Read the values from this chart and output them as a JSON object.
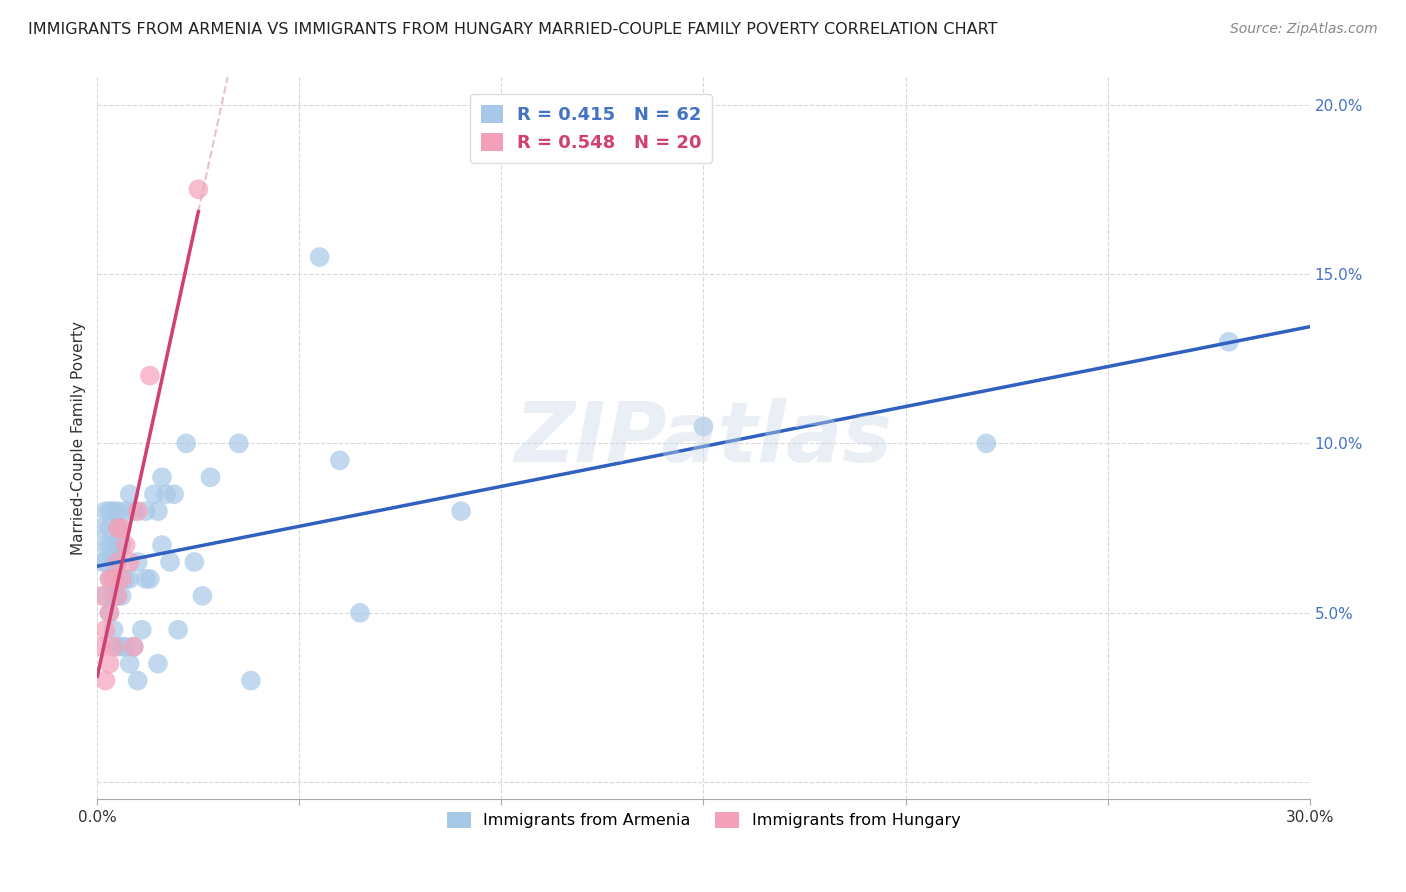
{
  "title": "IMMIGRANTS FROM ARMENIA VS IMMIGRANTS FROM HUNGARY MARRIED-COUPLE FAMILY POVERTY CORRELATION CHART",
  "source": "Source: ZipAtlas.com",
  "ylabel": "Married-Couple Family Poverty",
  "xlim": [
    0,
    0.3
  ],
  "ylim": [
    -0.005,
    0.208
  ],
  "xticks": [
    0.0,
    0.3
  ],
  "xtick_labels_show": [
    "0.0%",
    "30.0%"
  ],
  "yticks": [
    0.0,
    0.05,
    0.1,
    0.15,
    0.2
  ],
  "ytick_labels": [
    "",
    "5.0%",
    "10.0%",
    "15.0%",
    "20.0%"
  ],
  "armenia_x": [
    0.001,
    0.001,
    0.002,
    0.002,
    0.002,
    0.002,
    0.003,
    0.003,
    0.003,
    0.003,
    0.003,
    0.004,
    0.004,
    0.004,
    0.004,
    0.004,
    0.005,
    0.005,
    0.005,
    0.005,
    0.005,
    0.005,
    0.006,
    0.006,
    0.006,
    0.006,
    0.007,
    0.007,
    0.007,
    0.008,
    0.008,
    0.008,
    0.009,
    0.009,
    0.01,
    0.01,
    0.011,
    0.012,
    0.012,
    0.013,
    0.014,
    0.015,
    0.015,
    0.016,
    0.016,
    0.017,
    0.018,
    0.019,
    0.02,
    0.022,
    0.024,
    0.026,
    0.028,
    0.035,
    0.038,
    0.055,
    0.06,
    0.065,
    0.09,
    0.15,
    0.22,
    0.28
  ],
  "armenia_y": [
    0.065,
    0.075,
    0.055,
    0.065,
    0.07,
    0.08,
    0.05,
    0.06,
    0.07,
    0.075,
    0.08,
    0.045,
    0.055,
    0.065,
    0.07,
    0.08,
    0.04,
    0.055,
    0.065,
    0.07,
    0.075,
    0.08,
    0.04,
    0.055,
    0.07,
    0.075,
    0.04,
    0.06,
    0.08,
    0.035,
    0.06,
    0.085,
    0.04,
    0.08,
    0.03,
    0.065,
    0.045,
    0.06,
    0.08,
    0.06,
    0.085,
    0.035,
    0.08,
    0.07,
    0.09,
    0.085,
    0.065,
    0.085,
    0.045,
    0.1,
    0.065,
    0.055,
    0.09,
    0.1,
    0.03,
    0.155,
    0.095,
    0.05,
    0.08,
    0.105,
    0.1,
    0.13
  ],
  "hungary_x": [
    0.001,
    0.001,
    0.002,
    0.002,
    0.003,
    0.003,
    0.003,
    0.004,
    0.004,
    0.005,
    0.005,
    0.005,
    0.006,
    0.006,
    0.007,
    0.008,
    0.009,
    0.01,
    0.013,
    0.025
  ],
  "hungary_y": [
    0.04,
    0.055,
    0.03,
    0.045,
    0.035,
    0.05,
    0.06,
    0.04,
    0.06,
    0.055,
    0.065,
    0.075,
    0.06,
    0.075,
    0.07,
    0.065,
    0.04,
    0.08,
    0.12,
    0.175
  ],
  "armenia_color": "#a8c8e8",
  "hungary_color": "#f4a0b8",
  "armenia_line_color": "#3060c0",
  "hungary_line_color": "#d04070",
  "ref_line_color": "#e8c0d0",
  "watermark": "ZIPatlas",
  "watermark_color": "#c8d8e8",
  "r_armenia": 0.415,
  "r_hungary": 0.548,
  "n_armenia": 62,
  "n_hungary": 20
}
